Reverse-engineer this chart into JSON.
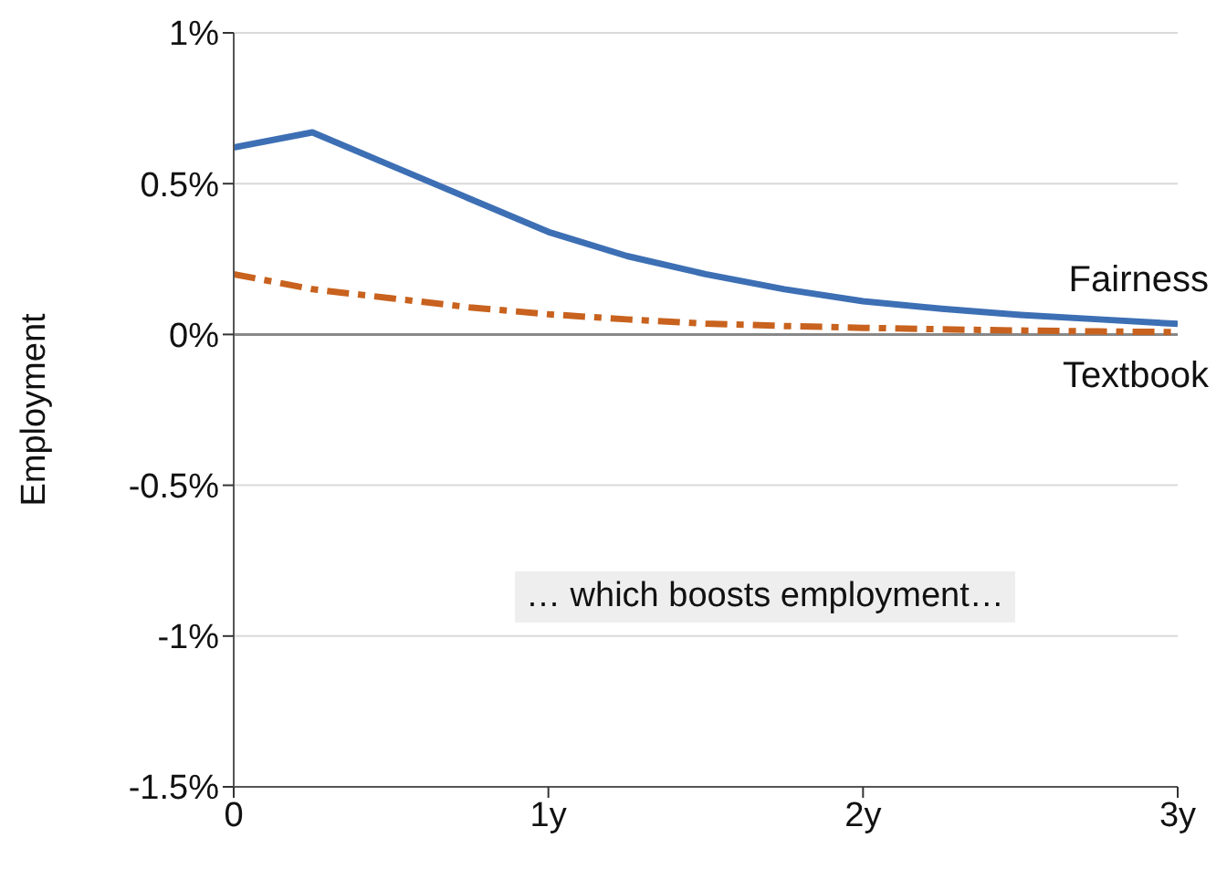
{
  "chart_data": {
    "type": "line",
    "ylabel": "Employment",
    "x": [
      0,
      0.25,
      0.5,
      0.75,
      1,
      1.25,
      1.5,
      1.75,
      2,
      2.25,
      2.5,
      2.75,
      3
    ],
    "series": [
      {
        "name": "Fairness",
        "color": "#3d6fb4",
        "line_style": "solid",
        "values": [
          0.62,
          0.67,
          0.56,
          0.45,
          0.34,
          0.26,
          0.2,
          0.15,
          0.11,
          0.085,
          0.065,
          0.05,
          0.035
        ]
      },
      {
        "name": "Textbook",
        "color": "#c8621e",
        "line_style": "dashed",
        "values": [
          0.2,
          0.15,
          0.12,
          0.09,
          0.067,
          0.05,
          0.036,
          0.028,
          0.022,
          0.017,
          0.013,
          0.01,
          0.008
        ]
      }
    ],
    "xlim": [
      0,
      3
    ],
    "xticks": [
      0,
      {
        "value": 1,
        "label": "1y"
      },
      {
        "value": 2,
        "label": "2y"
      },
      {
        "value": 3,
        "label": "3y"
      }
    ],
    "ylim": [
      -1.5,
      1
    ],
    "yticks": [
      {
        "value": -1.5,
        "label": "-1.5%"
      },
      {
        "value": -1,
        "label": "-1%"
      },
      {
        "value": -0.5,
        "label": "-0.5%"
      },
      {
        "value": 0,
        "label": "0%"
      },
      {
        "value": 0.5,
        "label": "0.5%"
      },
      {
        "value": 1,
        "label": "1%"
      }
    ],
    "grid": "y",
    "marker": "none",
    "legend": false,
    "ref_lines": [
      {
        "axis": "y",
        "value": 0,
        "color": "#888888"
      }
    ],
    "annotations": [
      "… which boosts employment…"
    ]
  }
}
